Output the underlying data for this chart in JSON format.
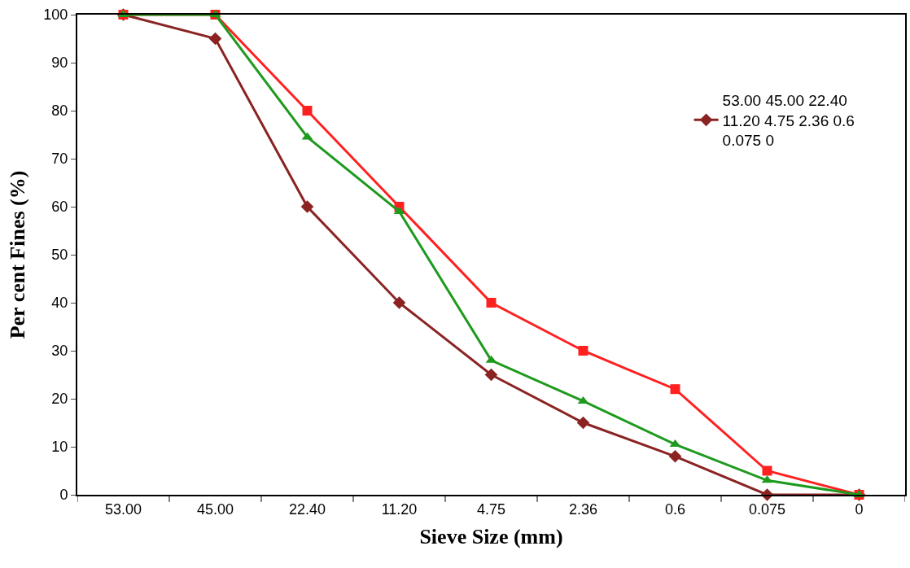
{
  "chart_data": {
    "type": "line",
    "xlabel": "Sieve Size (mm)",
    "ylabel": "Per cent Fines (%)",
    "categories": [
      "53.00",
      "45.00",
      "22.40",
      "11.20",
      "4.75",
      "2.36",
      "0.6",
      "0.075",
      "0"
    ],
    "series": [
      {
        "name": "53.00 45.00 22.40 11.20 4.75 2.36 0.6 0.075 0",
        "color": "#8b2323",
        "marker": "diamond",
        "values": [
          100,
          95,
          60,
          40,
          25,
          15,
          8,
          0,
          0
        ]
      },
      {
        "color": "#ff2020",
        "marker": "square",
        "values": [
          100,
          100,
          80,
          60,
          40,
          30,
          22,
          5,
          0
        ]
      },
      {
        "color": "#1e9a1e",
        "marker": "triangle",
        "values": [
          100,
          100,
          74.5,
          59,
          28,
          19.5,
          10.5,
          3,
          0
        ]
      }
    ],
    "ylim": [
      0,
      100
    ],
    "yticks": [
      0,
      10,
      20,
      30,
      40,
      50,
      60,
      70,
      80,
      90,
      100
    ],
    "legend": "right"
  }
}
